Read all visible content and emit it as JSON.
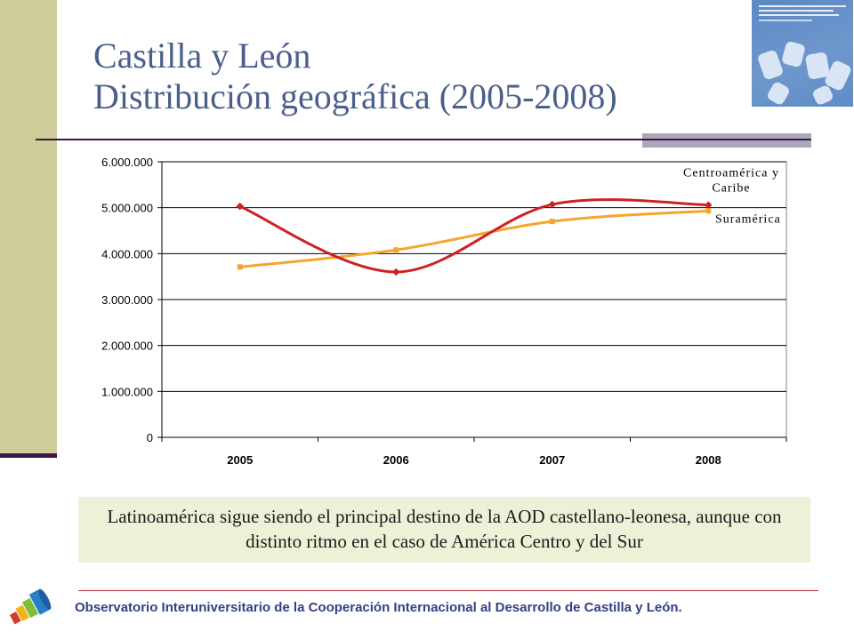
{
  "slide": {
    "title_line1": "Castilla y León",
    "title_line2": "Distribución geográfica (2005-2008)",
    "caption": "Latinoamérica sigue siendo el principal destino de la AOD castellano-leonesa, aunque con distinto ritmo en el caso de América Centro y del Sur",
    "footer": "Observatorio Interuniversitario de la Cooperación Internacional al Desarrollo de Castilla y León."
  },
  "colors": {
    "title": "#4a5f8c",
    "series_centroamerica": "#cc2222",
    "series_suramerica": "#f5a52a",
    "footer": "#333f86"
  },
  "chart_data": {
    "type": "line",
    "title": "",
    "xlabel": "",
    "ylabel": "",
    "categories": [
      "2005",
      "2006",
      "2007",
      "2008"
    ],
    "y_ticks": [
      "0",
      "1.000.000",
      "2.000.000",
      "3.000.000",
      "4.000.000",
      "5.000.000",
      "6.000.000"
    ],
    "ylim": [
      0,
      6000000
    ],
    "grid": true,
    "smoothed": true,
    "series": [
      {
        "name": "Centroamérica y Caribe",
        "values": [
          5030000,
          3600000,
          5070000,
          5060000
        ],
        "color": "#cc2222"
      },
      {
        "name": "Suramérica",
        "values": [
          3710000,
          4080000,
          4700000,
          4930000
        ],
        "color": "#f5a52a"
      }
    ]
  }
}
